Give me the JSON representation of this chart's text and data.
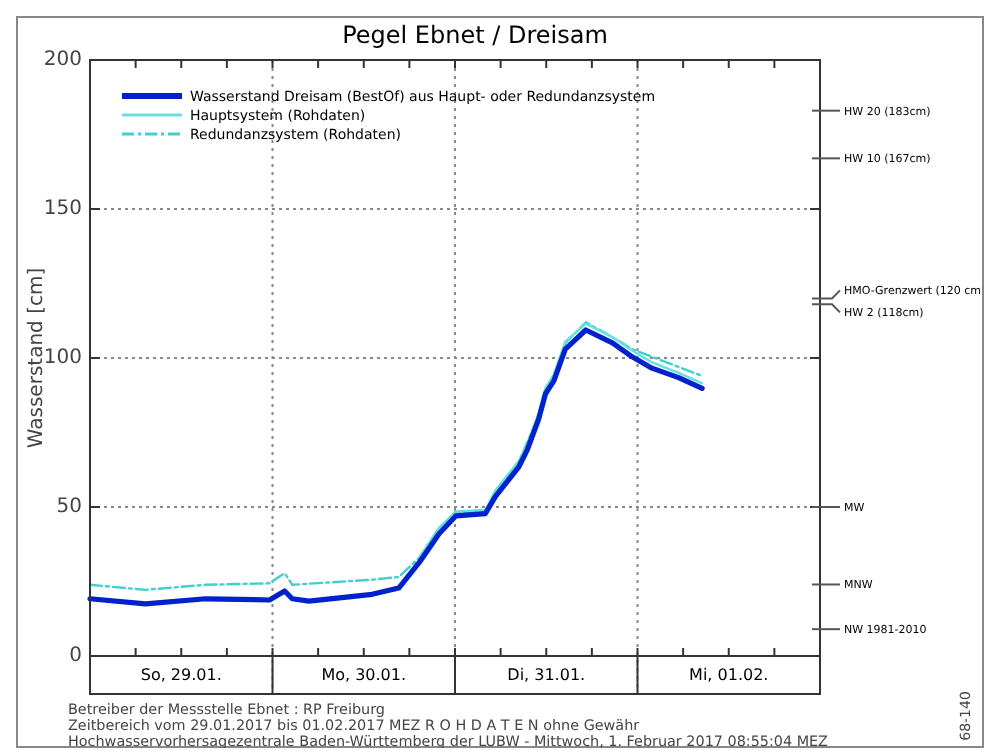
{
  "chart_data": {
    "type": "line",
    "title": "Pegel Ebnet / Dreisam",
    "ylabel": "Wasserstand [cm]",
    "xlim": [
      "2017-01-29",
      "2017-02-02"
    ],
    "xticks": [
      {
        "value": "2017-01-29T12:00",
        "label": "So, 29.01."
      },
      {
        "value": "2017-01-30T12:00",
        "label": "Mo, 30.01."
      },
      {
        "value": "2017-01-31T12:00",
        "label": "Di, 31.01."
      },
      {
        "value": "2017-02-01T12:00",
        "label": "Mi, 01.02."
      }
    ],
    "ylim": [
      0,
      200
    ],
    "yticks": [
      0,
      50,
      100,
      150,
      200
    ],
    "grid": "y",
    "legend": "top left",
    "series": [
      {
        "name": "Wasserstand Dreisam  (BestOf) aus Haupt- oder Redundanzsystem",
        "color": "#0022cc",
        "line_style": "solid",
        "x": [
          "2017-01-29T00:00",
          "2017-01-29T07:18",
          "2017-01-29T15:12",
          "2017-01-29T23:36",
          "2017-01-30T01:36",
          "2017-01-30T02:36",
          "2017-01-30T04:48",
          "2017-01-30T13:06",
          "2017-01-30T16:36",
          "2017-01-30T19:18",
          "2017-01-30T21:54",
          "2017-01-31T00:06",
          "2017-01-31T04:00",
          "2017-01-31T05:18",
          "2017-01-31T08:24",
          "2017-01-31T09:30",
          "2017-01-31T11:00",
          "2017-01-31T11:54",
          "2017-01-31T13:00",
          "2017-01-31T14:30",
          "2017-01-31T17:12",
          "2017-01-31T20:42",
          "2017-01-31T23:18",
          "2017-02-01T01:54",
          "2017-02-01T05:24",
          "2017-02-01T08:30"
        ],
        "values": [
          19.2,
          17.5,
          19.2,
          18.8,
          21.8,
          19.2,
          18.4,
          20.7,
          22.8,
          31.4,
          41,
          47,
          47.8,
          53.5,
          63.5,
          69.2,
          79.5,
          88,
          92.3,
          103,
          109.4,
          105.1,
          100.4,
          96.6,
          93.4,
          89.8
        ]
      },
      {
        "name": "Hauptsystem (Rohdaten)",
        "color": "#66e0e0",
        "line_style": "solid",
        "x": [
          "2017-01-30T19:18",
          "2017-01-30T21:54",
          "2017-01-31T00:06",
          "2017-01-31T04:00",
          "2017-01-31T05:18",
          "2017-01-31T08:24",
          "2017-01-31T09:30",
          "2017-01-31T11:00",
          "2017-01-31T11:54",
          "2017-01-31T13:00",
          "2017-01-31T14:30",
          "2017-01-31T17:12",
          "2017-01-31T20:42",
          "2017-01-31T23:18",
          "2017-02-01T01:54",
          "2017-02-01T05:24",
          "2017-02-01T08:30"
        ],
        "values": [
          33,
          43,
          48.5,
          49,
          55.5,
          65.5,
          71,
          81.5,
          90,
          94.5,
          105.5,
          111.5,
          107,
          102.5,
          98.5,
          95,
          91.5
        ]
      },
      {
        "name": "Redundanzsystem (Rohdaten)",
        "color": "#40d0d0",
        "line_style": "dashdot",
        "x": [
          "2017-01-29T00:00",
          "2017-01-29T07:18",
          "2017-01-29T15:12",
          "2017-01-29T23:36",
          "2017-01-30T01:36",
          "2017-01-30T02:36",
          "2017-01-30T13:06",
          "2017-01-30T16:36",
          "2017-01-30T19:18",
          "2017-01-30T21:54",
          "2017-01-31T00:06",
          "2017-01-31T04:00",
          "2017-01-31T05:18",
          "2017-01-31T08:24",
          "2017-01-31T11:00",
          "2017-01-31T13:00",
          "2017-01-31T14:30",
          "2017-01-31T17:12",
          "2017-01-31T20:42",
          "2017-01-31T23:18",
          "2017-02-01T05:24",
          "2017-02-01T08:30"
        ],
        "values": [
          23.9,
          22.2,
          23.9,
          24.4,
          27.8,
          23.9,
          25.6,
          26.5,
          33,
          43,
          48,
          48.5,
          55,
          65,
          81,
          94,
          105,
          112,
          107,
          103,
          97,
          94
        ]
      }
    ],
    "ref_lines": [
      {
        "axis": "y",
        "value": 183,
        "label": "HW 20 (183cm)"
      },
      {
        "axis": "y",
        "value": 167,
        "label": "HW 10 (167cm)"
      },
      {
        "axis": "y",
        "value": 120,
        "label": "HMO-Grenzwert (120 cm"
      },
      {
        "axis": "y",
        "value": 118,
        "label": "HW 2 (118cm)"
      },
      {
        "axis": "y",
        "value": 50,
        "label": "MW"
      },
      {
        "axis": "y",
        "value": 24,
        "label": "MNW"
      },
      {
        "axis": "y",
        "value": 9,
        "label": "NW 1981-2010"
      },
      {
        "axis": "x",
        "value": "2017-01-30",
        "line_style": "dotted"
      },
      {
        "axis": "x",
        "value": "2017-01-31",
        "line_style": "dotted"
      },
      {
        "axis": "x",
        "value": "2017-02-01",
        "line_style": "dotted"
      }
    ],
    "annotations": [
      "Betreiber der Messstelle Ebnet : RP Freiburg",
      "Zeitbereich vom 29.01.2017 bis 01.02.2017    MEZ    R O H D A T E N ohne Gewähr",
      "Hochwasservorhersagezentrale Baden-Württemberg der LUBW - Mittwoch, 1. Februar 2017 08:55:04 MEZ",
      "68-140"
    ]
  }
}
